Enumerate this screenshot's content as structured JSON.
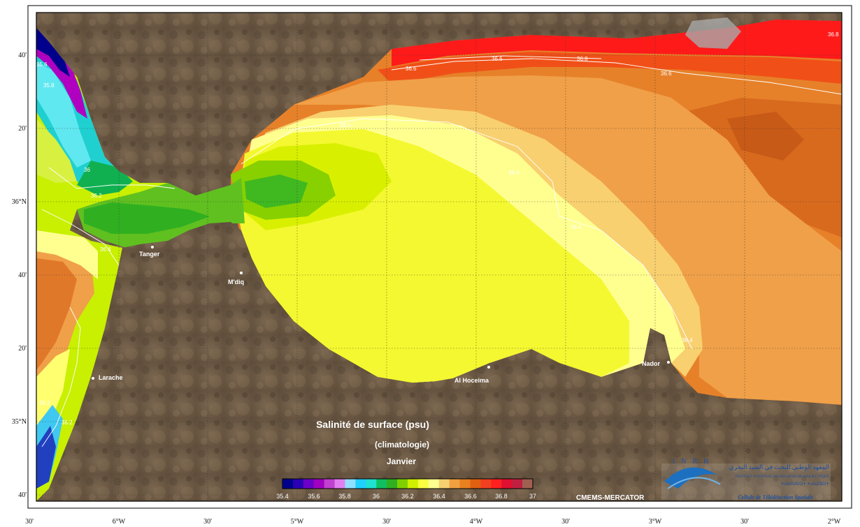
{
  "map": {
    "title": "Salinité de surface (psu)",
    "subtitle": "(climatologie)",
    "month": "Janvier",
    "source": "CMEMS-MERCATOR"
  },
  "axes": {
    "lat_labels": [
      "40'",
      "20'",
      "36°N",
      "40'",
      "20'",
      "35°N",
      "40'"
    ],
    "lon_labels": [
      "30'",
      "6°W",
      "30'",
      "5°W",
      "30'",
      "4°W",
      "30'",
      "3°W",
      "30'",
      "2°W"
    ]
  },
  "cities": [
    "Tanger",
    "M'diq",
    "Larache",
    "Al Hoceima",
    "Nador"
  ],
  "isolines": {
    "values": [
      "36.2",
      "36.2",
      "36.4",
      "36.4",
      "36.6",
      "36.6",
      "36.6",
      "36.8",
      "36.8",
      "35.6",
      "35.8",
      "36",
      "36.4",
      "36.4",
      "36.2",
      "36.4"
    ]
  },
  "colorbar": {
    "ticks": [
      "35.4",
      "35.6",
      "35.8",
      "36",
      "36.2",
      "36.4",
      "36.6",
      "36.8",
      "37"
    ],
    "colors": [
      "#00008c",
      "#2a00b4",
      "#6a00c8",
      "#a000c0",
      "#c040d0",
      "#e080f0",
      "#90e0ff",
      "#20d0ff",
      "#20e0d0",
      "#10c060",
      "#30b020",
      "#80d000",
      "#d0f000",
      "#f8ff40",
      "#ffff90",
      "#f8d070",
      "#f0a040",
      "#e88020",
      "#e06010",
      "#f04020",
      "#ff2020",
      "#e01030",
      "#c02040",
      "#a06050"
    ]
  },
  "logo": {
    "acronym": "INRH",
    "arabic": "المعهد الوطني للبحث في الصيد البحري",
    "name": "INSTITUT NATIONAL DE RECHERCHE HALIEUTIQUE",
    "tifinagh": "ⵜⴰⵙⴷⵍⵉⵙⵜ ⵜⴰⵏⴰⵎⵓⵔⵜ",
    "unit": "Cellule de Télédétection Spatiale"
  },
  "colors": {
    "land": "#6e5a44",
    "frame": "#000000"
  }
}
